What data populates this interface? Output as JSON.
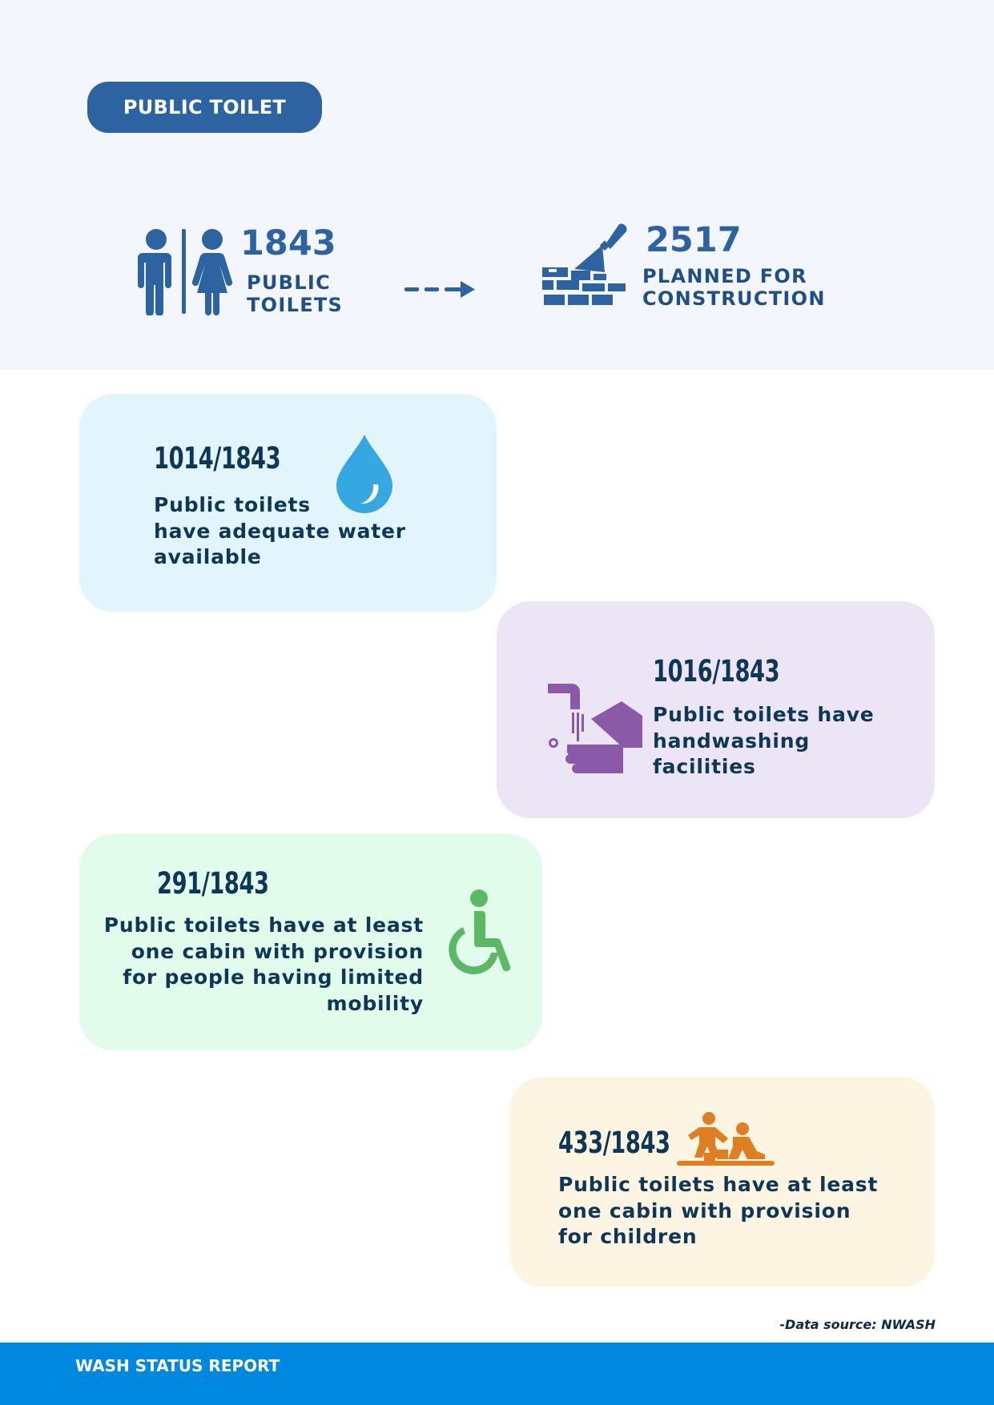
{
  "header": {
    "title": "PUBLIC TOILET"
  },
  "summary": {
    "existing": {
      "value": "1843",
      "label_line1": "PUBLIC",
      "label_line2": "TOILETS"
    },
    "planned": {
      "value": "2517",
      "label_line1": "PLANNED FOR",
      "label_line2": "CONSTRUCTION"
    }
  },
  "cards": [
    {
      "fraction": "1014/1843",
      "lines": [
        "Public toilets",
        "have adequate water",
        "available"
      ],
      "icon": "water-drop-icon",
      "bg": "#e2f4fc",
      "icon_color": "#35a7e1"
    },
    {
      "fraction": "1016/1843",
      "lines": [
        "Public toilets have",
        "handwashing",
        "facilities"
      ],
      "icon": "handwashing-icon",
      "bg": "#ebe5f5",
      "icon_color": "#8a5aa8"
    },
    {
      "fraction": "291/1843",
      "lines": [
        "Public toilets have at least",
        "one cabin with provision",
        "for people having limited",
        "mobility"
      ],
      "icon": "wheelchair-icon",
      "bg": "#e2fcec",
      "icon_color": "#5db866"
    },
    {
      "fraction": "433/1843",
      "lines": [
        "Public toilets have at least",
        "one cabin with provision",
        "for children"
      ],
      "icon": "children-playing-icon",
      "bg": "#fdf5e1",
      "icon_color": "#e07e22"
    }
  ],
  "source": "-Data source: NWASH",
  "footer": {
    "title": "WASH STATUS REPORT"
  },
  "colors": {
    "primary": "#2e63a1",
    "text_dark": "#0e3657",
    "footer_bg": "#0087e0",
    "top_band": "#f3f7fd"
  }
}
